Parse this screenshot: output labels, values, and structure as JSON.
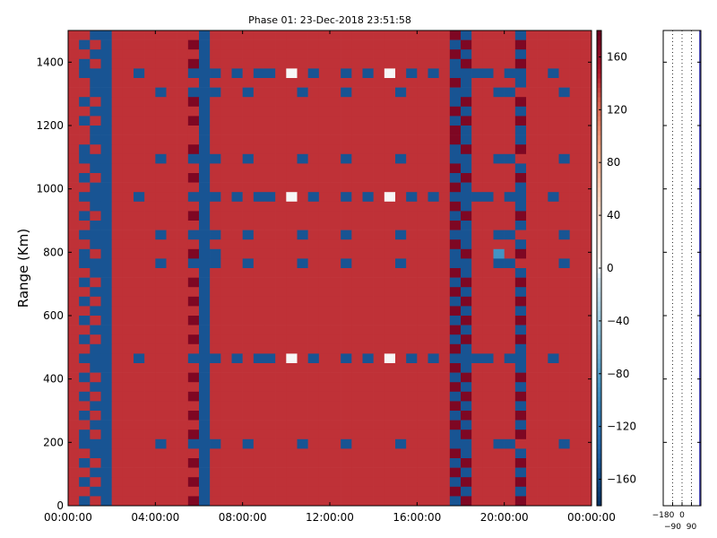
{
  "chart_data": {
    "type": "heatmap",
    "title": "Phase 01: 23-Dec-2018 23:51:58",
    "xlabel": "",
    "ylabel": "Range (Km)",
    "x_tick_labels": [
      "00:00:00",
      "04:00:00",
      "08:00:00",
      "12:00:00",
      "16:00:00",
      "20:00:00",
      "00:00:00"
    ],
    "x_range_hours": [
      0,
      24
    ],
    "y_ticks": [
      0,
      200,
      400,
      600,
      800,
      1000,
      1200,
      1400
    ],
    "ylim": [
      0,
      1500
    ],
    "colorbar": {
      "ticks": [
        160,
        120,
        80,
        40,
        0,
        -40,
        -80,
        -120,
        -160
      ],
      "range": [
        -180,
        180
      ],
      "colormap": "RdBu_r"
    },
    "cell_codes": {
      "R": 140,
      "M": 170,
      "D": -150,
      "L": -90,
      "W": 0
    },
    "time_bins": 48,
    "range_bin_km": 30,
    "rows_top_to_bottom": [
      "RRDDRRRRRRRRDRRRRRRRRRRRRRRRRRRRRRRMDRRRRDRRRRRR",
      "RDRDRRRRRRRMDRRRRRRRRRRRRRRRRRRRRRRDMRRRRMRRRRRR",
      "RRDDRRRRRRRRDRRRRRRRRRRRRRRRRRRRRRRMDRRRRDRRRRRR",
      "RDRDRRRRRRRMDRRRRRRRRRRRRRRRRRRRRRRDMRRRRMRRRRRR",
      "RDDDRRDRRRRDDDRDRDDRWRDRRDRDRWRDRDRDDDDRDDRRDRRR",
      "RRDDRRRRRRRRDRRRRRRRRRRRRRRRRRRRRRRMDRRRRDRRRRRR",
      "RRDDRRRRDRRDDDRRDRRRRDRRRDRRRRDRRRRDDRRDDRRRRDRR",
      "RDRDRRRRRRRMDRRRRRRRRRRRRRRRRRRRRRRDMRRRRMRRRRRR",
      "RRDDRRRRRRRRDRRRRRRRRRRRRRRRRRRRRRRMDRRRRDRRRRRR",
      "RDRDRRRRRRRMDRRRRRRRRRRRRRRRRRRRRRRDMRRRRMRRRRRR",
      "RRDDRRRRRRRRDRRRRRRRRRRRRRRRRRRRRRRMDRRRRDRRRRRR",
      "RRDDRRRRRRRRDRRRRRRRRRRRRRRRRRRRRRRMDRRRRDRRRRRR",
      "RDRDRRRRRRRMDRRRRRRRRRRRRRRRRRRRRRRDMRRRRMRRRRRR",
      "RDDDRRRRDRRDDDRRDRRRRDRRRDRRRRDRRRRDDRRDDRRRRDRR",
      "RRDDRRRRRRRRDRRRRRRRRRRRRRRRRRRRRRRMDRRRRDRRRRRR",
      "RDRDRRRRRRRMDRRRRRRRRRRRRRRRRRRRRRRDMRRRRMRRRRRR",
      "RRDDRRRRRRRRDRRRRRRRRRRRRRRRRRRRRRRMDRRRRDRRRRRR",
      "RDDDRRDRRRRDDDRDRDDRWRDRRDRDRWRDRDRDDDDRDDRRDRRR",
      "RRDDRRRRRRRRDRRRRRRRRRRRRRRRRRRRRRRMDRRRRDRRRRRR",
      "RDRDRRRRRRRMDRRRRRRRRRRRRRRRRRRRRRRDMRRRRMRRRRRR",
      "RRDDRRRRRRRRDRRRRRRRRRRRRRRRRRRRRRRMDRRRRDRRRRRR",
      "RDDDRRRRDRRDDDRRDRRRRDRRRDRRRRDRRRRDDRRDDRRRRDRR",
      "RRDDRRRRRRRRDRRRRRRRRRRRRRRRRRRRRRRMDRRRRDRRRRRR",
      "RDRDRRRRRRRMDDRRRRRRRRRRRRRRRRRRRRRDMRRLRMRRRRRR",
      "RDDDRRRRDRRDDDRRDRRRRDRRRDRRRRDRRRRDDRRDDRRRRDRR",
      "RRDDRRRRRRRRDRRRRRRRRRRRRRRRRRRRRRRMDRRRRDRRRRRR",
      "RDRDRRRRRRRMDRRRRRRRRRRRRRRRRRRRRRRDMRRRRMRRRRRR",
      "RRDDRRRRRRRRDRRRRRRRRRRRRRRRRRRRRRRMDRRRRDRRRRRR",
      "RDRDRRRRRRRMDRRRRRRRRRRRRRRRRRRRRRRDMRRRRMRRRRRR",
      "RRDDRRRRRRRRDRRRRRRRRRRRRRRRRRRRRRRMDRRRRDRRRRRR",
      "RDRDRRRRRRRMDRRRRRRRRRRRRRRRRRRRRRRDMRRRRMRRRRRR",
      "RRDDRRRRRRRRDRRRRRRRRRRRRRRRRRRRRRRMDRRRRDRRRRRR",
      "RDRDRRRRRRRMDRRRRRRRRRRRRRRRRRRRRRRDMRRRRMRRRRRR",
      "RRDDRRRRRRRRDRRRRRRRRRRRRRRRRRRRRRRMDRRRRDRRRRRR",
      "RDDDRRDRRRRDDDRDRDDRWRDRRDRDRWRDRDRDDDDRDDRRDRRR",
      "RRDDRRRRRRRRDRRRRRRRRRRRRRRRRRRRRRRMDRRRRDRRRRRR",
      "RDRDRRRRRRRMDRRRRRRRRRRRRRRRRRRRRRRDMRRRRMRRRRRR",
      "RRDDRRRRRRRRDRRRRRRRRRRRRRRRRRRRRRRMDRRRRDRRRRRR",
      "RDRDRRRRRRRMDRRRRRRRRRRRRRRRRRRRRRRDMRRRRMRRRRRR",
      "RRDDRRRRRRRRDRRRRRRRRRRRRRRRRRRRRRRMDRRRRDRRRRRR",
      "RDRDRRRRRRRMDRRRRRRRRRRRRRRRRRRRRRRDMRRRRMRRRRRR",
      "RRDDRRRRRRRRDRRRRRRRRRRRRRRRRRRRRRRMDRRRRDRRRRRR",
      "RDRDRRRRRRRMDRRRRRRRRRRRRRRRRRRRRRRDMRRRRMRRRRRR",
      "RDDDRRRRDRRDDDRRDRRRRDRRRDRRRRDRRRRDDRRDDRRRRDRR",
      "RRDDRRRRRRRRDRRRRRRRRRRRRRRRRRRRRRRMDRRRRDRRRRRR",
      "RDRDRRRRRRRMDRRRRRRRRRRRRRRRRRRRRRRDMRRRRMRRRRRR",
      "RRDDRRRRRRRRDRRRRRRRRRRRRRRRRRRRRRRMDRRRRDRRRRRR",
      "RDRDRRRRRRRMDRRRRRRRRRRRRRRRRRRRRRRDMRRRRMRRRRRR",
      "RRDDRRRRRRRRDRRRRRRRRRRRRRRRRRRRRRRMDRRRRDRRRRRR",
      "RDRDRRRRRRRMDRRRRRRRRRRRRRRRRRRRRRRDMRRRRMRRRRRR"
    ],
    "side_panel": {
      "type": "line",
      "x_ticks": [
        -180,
        -90,
        0,
        90
      ],
      "x_tick_labels": [
        "−180",
        "−90",
        "0",
        "90"
      ],
      "xlim": [
        -180,
        180
      ],
      "gridlines_x": [
        -90,
        0,
        90
      ],
      "line_value": 170,
      "line_color": "#2222aa"
    }
  }
}
